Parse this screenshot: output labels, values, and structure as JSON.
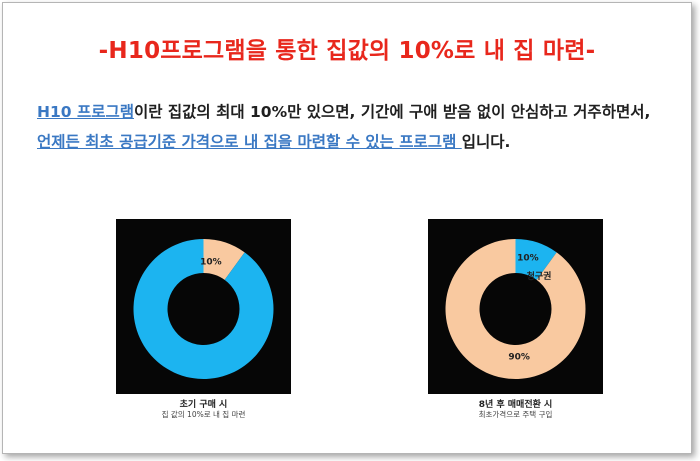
{
  "document": {
    "title": "-H10프로그램을 통한 집값의 10%로 내 집 마련-",
    "paragraph": {
      "link1": "H10 프로그램",
      "text1": "이란 집값의 최대 10%만 있으면, 기간에 구애 받음 없이 안심하고 거주하면서, ",
      "link2": "언제든 최초 공급기준 가격으로 내 집을 마련할 수 있는 프로그램 ",
      "text2": "입니다."
    }
  },
  "chart_data": [
    {
      "type": "pie",
      "style": "donut",
      "slices": [
        {
          "value": 10,
          "label": "10%",
          "color": "#f9c9a0"
        },
        {
          "value": 90,
          "label": "",
          "color": "#1cb4f0"
        }
      ],
      "caption": "초기 구매 시",
      "subcaption": "집 값의 10%로 내 집 마련",
      "background": "#060606"
    },
    {
      "type": "pie",
      "style": "donut",
      "slices": [
        {
          "value": 10,
          "label": "10%",
          "color": "#1cb4f0"
        },
        {
          "value": 90,
          "label": "90%",
          "color": "#f9c9a0"
        }
      ],
      "annotation": "청구권",
      "caption": "8년 후 매매전환 시",
      "subcaption": "최초가격으로 주택 구입",
      "background": "#060606"
    }
  ]
}
